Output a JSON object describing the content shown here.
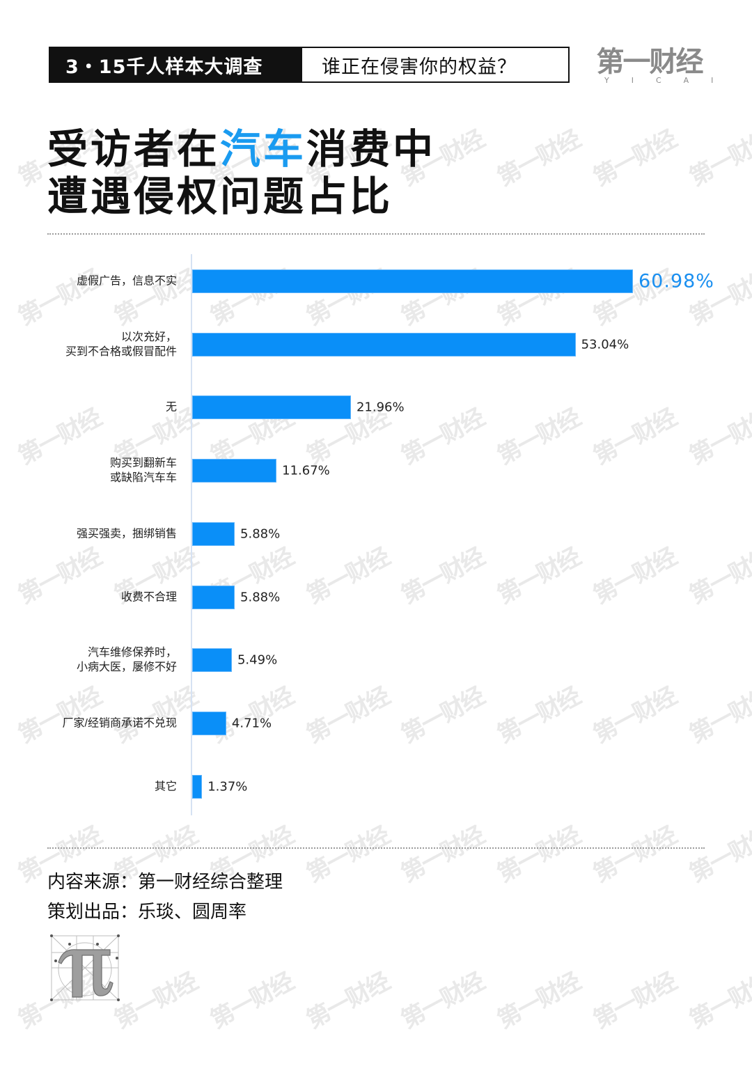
{
  "header": {
    "tag": "3・15千人样本大调查",
    "subtitle": "谁正在侵害你的权益？"
  },
  "logo": {
    "cn": "第一财经",
    "en": "YICAI"
  },
  "title": {
    "line1_pre": "受访者在",
    "line1_highlight": "汽车",
    "line1_post": "消费中",
    "line2": "遭遇侵权问题占比"
  },
  "colors": {
    "bar": "#0a8ff8",
    "highlight": "#1a9bf0",
    "text": "#111111",
    "axis": "#d6e2f3"
  },
  "chart_data": {
    "type": "bar",
    "orientation": "horizontal",
    "title": "受访者在汽车消费中遭遇侵权问题占比",
    "xlabel": "",
    "ylabel": "",
    "grid": false,
    "legend": null,
    "xlim": [
      0,
      61
    ],
    "unit": "%",
    "categories": [
      "虚假广告，信息不实",
      "以次充好，\n买到不合格或假冒配件",
      "无",
      "购买到翻新车\n或缺陷汽车车",
      "强买强卖，捆绑销售",
      "收费不合理",
      "汽车维修保养时，\n小病大医，屡修不好",
      "厂家/经销商承诺不兑现",
      "其它"
    ],
    "values": [
      60.98,
      53.04,
      21.96,
      11.67,
      5.88,
      5.88,
      5.49,
      4.71,
      1.37
    ],
    "value_labels": [
      "60.98%",
      "53.04%",
      "21.96%",
      "11.67%",
      "5.88%",
      "5.88%",
      "5.49%",
      "4.71%",
      "1.37%"
    ]
  },
  "footer": {
    "source_label": "内容来源：",
    "source_value": "第一财经综合整理",
    "credit_label": "策划出品：",
    "credit_value": "乐琰、圆周率"
  },
  "watermark": "第一财经"
}
